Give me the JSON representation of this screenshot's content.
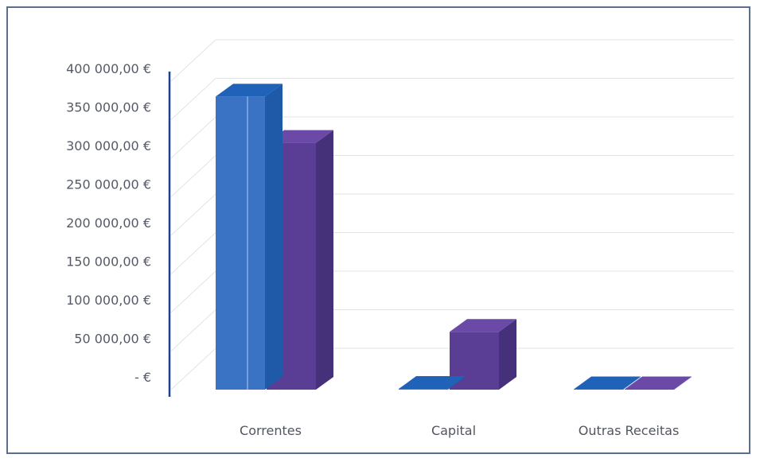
{
  "chart_data": {
    "type": "bar",
    "style": "3d-clustered",
    "categories": [
      "Correntes",
      "Capital",
      "Outras Receitas"
    ],
    "series": [
      {
        "values": [
          380000,
          1000,
          500
        ],
        "color": "#3a72c4",
        "color_side": "#1e5aa8",
        "color_top": "#1f62b8"
      },
      {
        "values": [
          320000,
          75000,
          500
        ],
        "color": "#5a3e96",
        "color_side": "#45307a",
        "color_top": "#6a4aa6"
      }
    ],
    "y_ticks": [
      0,
      50000,
      100000,
      150000,
      200000,
      250000,
      300000,
      350000,
      400000
    ],
    "y_tick_labels": [
      "-  €",
      "50 000,00 €",
      "100 000,00 €",
      "150 000,00 €",
      "200 000,00 €",
      "250 000,00 €",
      "300 000,00 €",
      "350 000,00 €",
      "400 000,00 €"
    ],
    "ylim": [
      0,
      400000
    ],
    "grid": true,
    "legend": "none",
    "axis_color": "#1f3f8f",
    "grid_color": "#e3e3e3"
  }
}
